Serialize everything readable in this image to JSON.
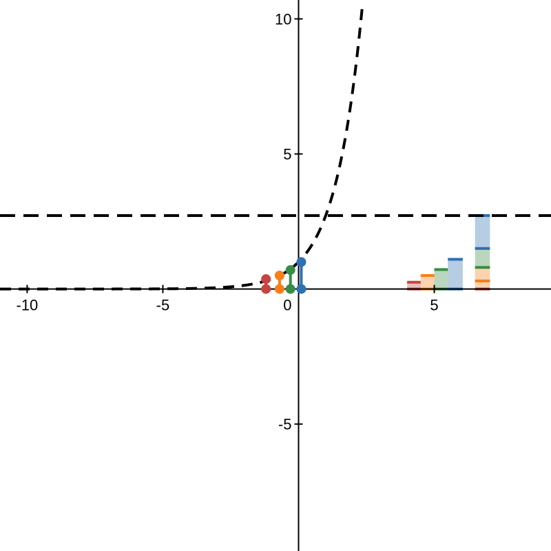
{
  "chart_data": {
    "type": "line",
    "title": "",
    "xlabel": "",
    "ylabel": "",
    "xlim": [
      -11,
      9.3
    ],
    "ylim": [
      -9.7,
      10.7
    ],
    "grid": false,
    "x_ticks": [
      -10,
      -5,
      0,
      5
    ],
    "y_ticks": [
      -5,
      5,
      10
    ],
    "x_tick_labels": [
      "-10",
      "-5",
      "0",
      "5"
    ],
    "y_tick_labels": [
      "-5",
      "5",
      "10"
    ],
    "curve": {
      "function": "exp(x)",
      "x_range": [
        -11,
        2.35
      ],
      "style": "dashed",
      "color": "#000000"
    },
    "asymptote": {
      "y": 2.718,
      "style": "dashed",
      "color": "#000000"
    },
    "stems": [
      {
        "x": -1.2,
        "y0": 0,
        "y1": 0.368,
        "color": "#c74440"
      },
      {
        "x": -0.7,
        "y0": 0,
        "y1": 0.5,
        "color": "#fa7e19"
      },
      {
        "x": -0.3,
        "y0": 0,
        "y1": 0.704,
        "color": "#388c46"
      },
      {
        "x": 0.1,
        "y0": 0,
        "y1": 1.0,
        "color": "#2d70b3"
      }
    ],
    "bars": [
      {
        "x0": 4.0,
        "x1": 4.5,
        "y": 0.25,
        "color": "#c74440"
      },
      {
        "x0": 4.5,
        "x1": 5.0,
        "y": 0.5,
        "color": "#fa7e19"
      },
      {
        "x0": 5.0,
        "x1": 5.5,
        "y": 0.72,
        "color": "#388c46"
      },
      {
        "x0": 5.5,
        "x1": 6.05,
        "y": 1.1,
        "color": "#2d70b3"
      }
    ],
    "stacked_bar": {
      "x0": 6.5,
      "x1": 7.05,
      "segments": [
        {
          "y0": 0,
          "y1": 0.3,
          "color": "#fa7e19"
        },
        {
          "y0": 0.3,
          "y1": 0.8,
          "color": "#fa7e19"
        },
        {
          "y0": 0.8,
          "y1": 1.5,
          "color": "#388c46"
        },
        {
          "y0": 1.5,
          "y1": 2.72,
          "color": "#2d70b3"
        }
      ],
      "levels": [
        {
          "y": 0,
          "color": "#c74440"
        },
        {
          "y": 0.3,
          "color": "#fa7e19"
        },
        {
          "y": 0.8,
          "color": "#388c46"
        },
        {
          "y": 1.5,
          "color": "#2d70b3"
        },
        {
          "y": 2.72,
          "color": "#2d70b3"
        }
      ]
    }
  }
}
